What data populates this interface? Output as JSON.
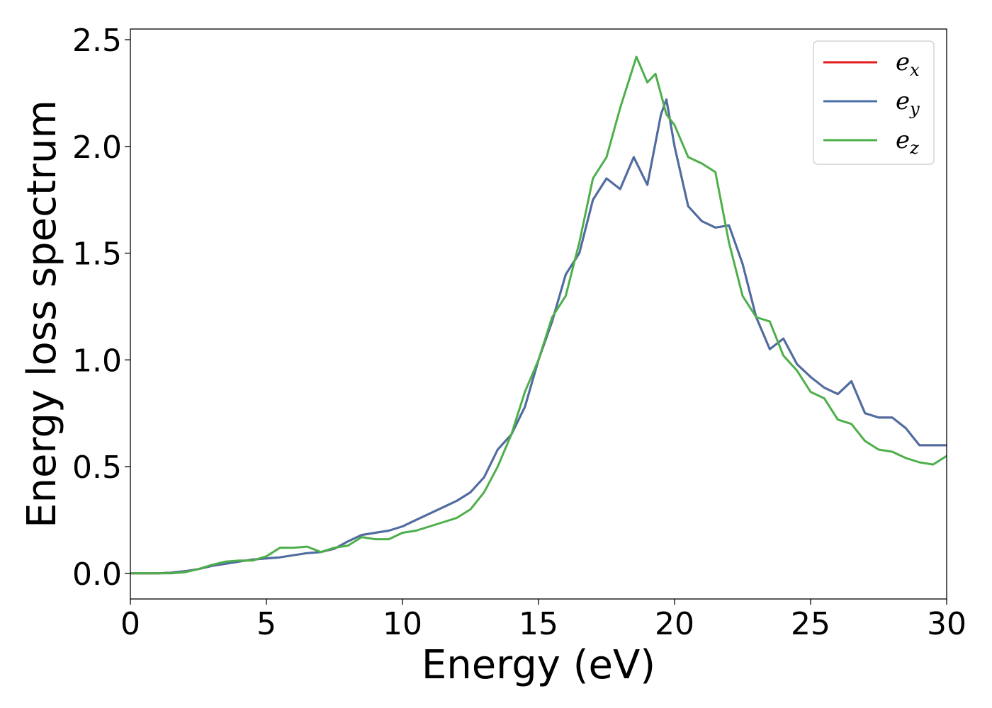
{
  "chart_data": {
    "type": "line",
    "xlabel": "Energy (eV)",
    "ylabel": "Energy loss spectrum",
    "xlim": [
      0,
      30
    ],
    "ylim": [
      -0.12,
      2.55
    ],
    "xticks": [
      0,
      5,
      10,
      15,
      20,
      25,
      30
    ],
    "xtick_labels": [
      "0",
      "5",
      "10",
      "15",
      "20",
      "25",
      "30"
    ],
    "yticks": [
      0.0,
      0.5,
      1.0,
      1.5,
      2.0,
      2.5
    ],
    "ytick_labels": [
      "0.0",
      "0.5",
      "1.0",
      "1.5",
      "2.0",
      "2.5"
    ],
    "grid": false,
    "legend_position": "top-right",
    "series": [
      {
        "name": "e",
        "subscript": "x",
        "color": "#e41a1c",
        "x": [
          0,
          1,
          1.5,
          2,
          2.5,
          3,
          3.5,
          4,
          4.5,
          5,
          5.5,
          6,
          6.5,
          7,
          7.5,
          8,
          8.5,
          9,
          9.5,
          10,
          10.5,
          11,
          11.5,
          12,
          12.5,
          13,
          13.5,
          14,
          14.5,
          15,
          15.5,
          16,
          16.5,
          17,
          17.5,
          18,
          18.5,
          19,
          19.5,
          19.7,
          20,
          20.5,
          21,
          21.5,
          22,
          22.5,
          23,
          23.5,
          24,
          24.5,
          25,
          25.5,
          26,
          26.5,
          27,
          27.5,
          28,
          28.5,
          29,
          29.5,
          30
        ],
        "y": [
          0,
          0,
          0.003,
          0.01,
          0.02,
          0.035,
          0.045,
          0.055,
          0.065,
          0.07,
          0.075,
          0.085,
          0.095,
          0.1,
          0.115,
          0.15,
          0.18,
          0.19,
          0.2,
          0.22,
          0.25,
          0.28,
          0.31,
          0.34,
          0.38,
          0.45,
          0.58,
          0.65,
          0.78,
          1.0,
          1.18,
          1.4,
          1.5,
          1.75,
          1.85,
          1.8,
          1.95,
          1.82,
          2.15,
          2.22,
          2.0,
          1.72,
          1.65,
          1.62,
          1.63,
          1.45,
          1.2,
          1.05,
          1.1,
          0.98,
          0.92,
          0.87,
          0.84,
          0.9,
          0.75,
          0.73,
          0.73,
          0.68,
          0.6,
          0.6,
          0.6
        ]
      },
      {
        "name": "e",
        "subscript": "y",
        "color": "#4a6fa5",
        "x": [
          0,
          1,
          1.5,
          2,
          2.5,
          3,
          3.5,
          4,
          4.5,
          5,
          5.5,
          6,
          6.5,
          7,
          7.5,
          8,
          8.5,
          9,
          9.5,
          10,
          10.5,
          11,
          11.5,
          12,
          12.5,
          13,
          13.5,
          14,
          14.5,
          15,
          15.5,
          16,
          16.5,
          17,
          17.5,
          18,
          18.5,
          19,
          19.5,
          19.7,
          20,
          20.5,
          21,
          21.5,
          22,
          22.5,
          23,
          23.5,
          24,
          24.5,
          25,
          25.5,
          26,
          26.5,
          27,
          27.5,
          28,
          28.5,
          29,
          29.5,
          30
        ],
        "y": [
          0,
          0,
          0.003,
          0.01,
          0.02,
          0.035,
          0.045,
          0.055,
          0.065,
          0.07,
          0.075,
          0.085,
          0.095,
          0.1,
          0.115,
          0.15,
          0.18,
          0.19,
          0.2,
          0.22,
          0.25,
          0.28,
          0.31,
          0.34,
          0.38,
          0.45,
          0.58,
          0.65,
          0.78,
          1.0,
          1.18,
          1.4,
          1.5,
          1.75,
          1.85,
          1.8,
          1.95,
          1.82,
          2.15,
          2.22,
          2.0,
          1.72,
          1.65,
          1.62,
          1.63,
          1.45,
          1.2,
          1.05,
          1.1,
          0.98,
          0.92,
          0.87,
          0.84,
          0.9,
          0.75,
          0.73,
          0.73,
          0.68,
          0.6,
          0.6,
          0.6
        ]
      },
      {
        "name": "e",
        "subscript": "z",
        "color": "#4daf4a",
        "x": [
          0,
          1,
          1.5,
          2,
          2.5,
          3,
          3.5,
          4,
          4.5,
          5,
          5.5,
          6,
          6.5,
          7,
          7.5,
          8,
          8.5,
          9,
          9.5,
          10,
          10.5,
          11,
          11.5,
          12,
          12.5,
          13,
          13.5,
          14,
          14.5,
          15,
          15.5,
          16,
          16.5,
          17,
          17.5,
          18,
          18.3,
          18.6,
          19,
          19.3,
          19.7,
          20,
          20.5,
          21,
          21.5,
          22,
          22.5,
          23,
          23.5,
          24,
          24.5,
          25,
          25.5,
          26,
          26.5,
          27,
          27.5,
          28,
          28.5,
          29,
          29.5,
          30
        ],
        "y": [
          0,
          0,
          0,
          0.005,
          0.02,
          0.04,
          0.055,
          0.06,
          0.06,
          0.08,
          0.12,
          0.12,
          0.125,
          0.1,
          0.12,
          0.13,
          0.17,
          0.16,
          0.16,
          0.19,
          0.2,
          0.22,
          0.24,
          0.26,
          0.3,
          0.38,
          0.5,
          0.65,
          0.85,
          1.0,
          1.2,
          1.3,
          1.55,
          1.85,
          1.95,
          2.18,
          2.3,
          2.42,
          2.3,
          2.34,
          2.15,
          2.1,
          1.95,
          1.92,
          1.88,
          1.55,
          1.3,
          1.2,
          1.18,
          1.02,
          0.95,
          0.85,
          0.82,
          0.72,
          0.7,
          0.62,
          0.58,
          0.57,
          0.54,
          0.52,
          0.51,
          0.55
        ]
      }
    ]
  }
}
